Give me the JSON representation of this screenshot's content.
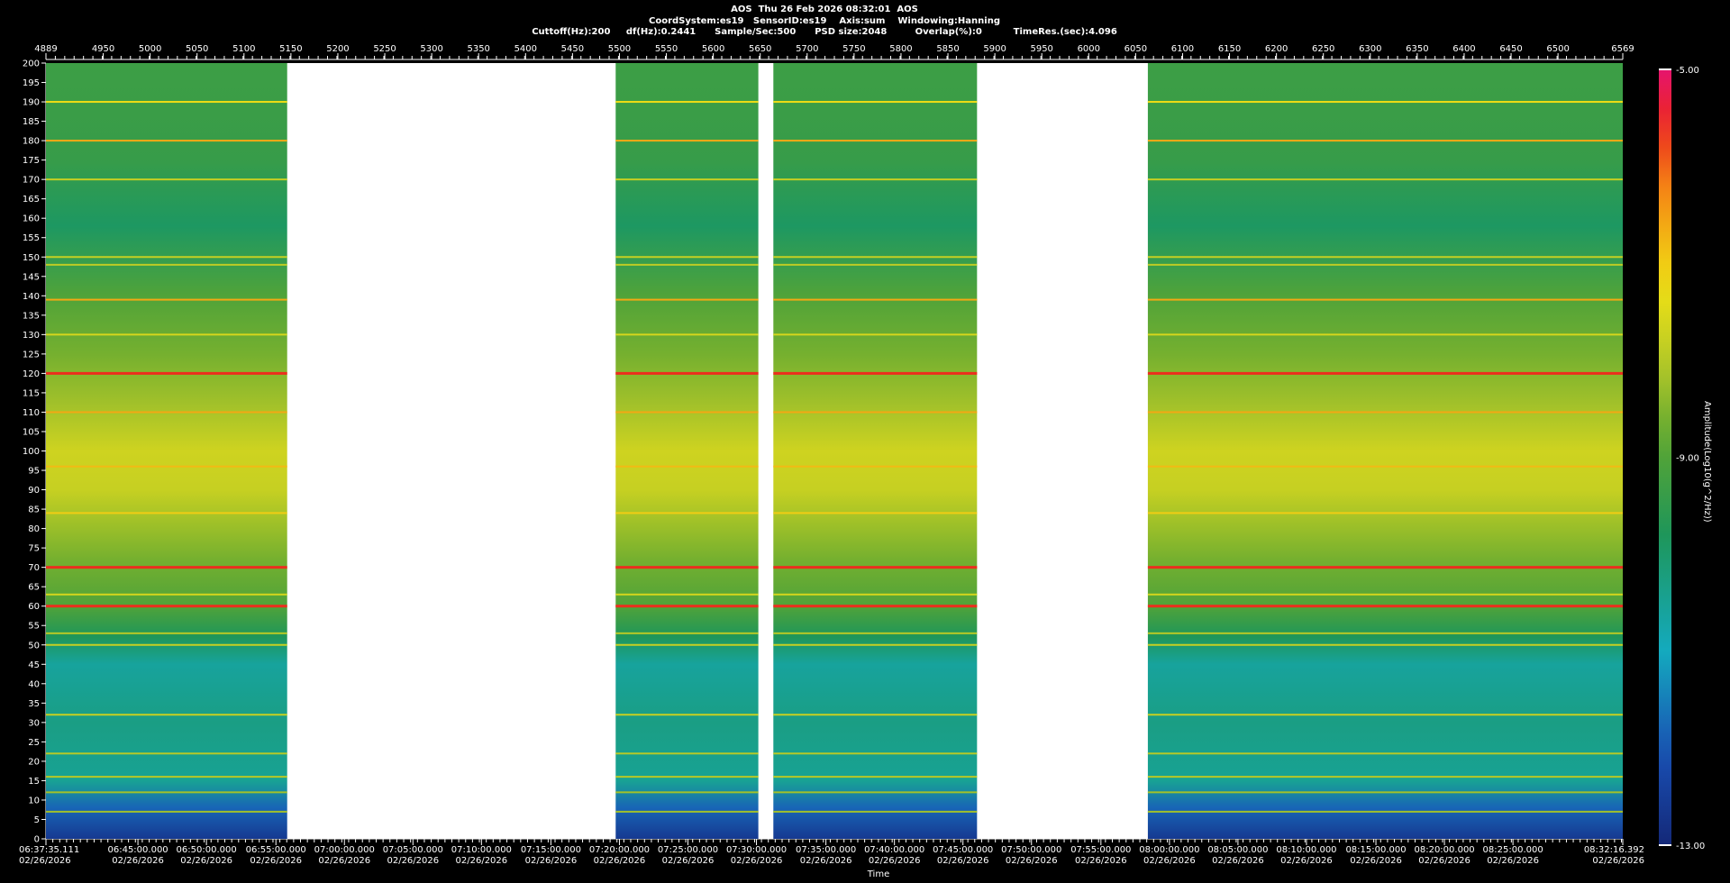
{
  "header": {
    "line1": "AOS  Thu 26 Feb 2026 08:32:01  AOS",
    "line2": "CoordSystem:es19   SensorID:es19    Axis:sum    Windowing:Hanning",
    "line3": "Cuttoff(Hz):200     df(Hz):0.2441      Sample/Sec:500      PSD size:2048         Overlap(%):0          TimeRes.(sec):4.096"
  },
  "chart_data": {
    "type": "heatmap",
    "title": "AOS  Thu 26 Feb 2026 08:32:01  AOS",
    "xlabel": "Time",
    "ylabel": "",
    "colorbar_label": "Amplitude(Log10(g^2/Hz))",
    "ylim": [
      0,
      200
    ],
    "y_ticks": [
      0,
      5,
      10,
      15,
      20,
      25,
      30,
      35,
      40,
      45,
      50,
      55,
      60,
      65,
      70,
      75,
      80,
      85,
      90,
      95,
      100,
      105,
      110,
      115,
      120,
      125,
      130,
      135,
      140,
      145,
      150,
      155,
      160,
      165,
      170,
      175,
      180,
      185,
      190,
      195,
      200
    ],
    "top_axis_range": [
      4889,
      6569
    ],
    "top_ticks": [
      {
        "v": 4889,
        "label": "4889"
      },
      {
        "v": 4950,
        "label": "4950"
      },
      {
        "v": 5000,
        "label": "5000"
      },
      {
        "v": 5050,
        "label": "5050"
      },
      {
        "v": 5100,
        "label": "5100"
      },
      {
        "v": 5150,
        "label": "5150"
      },
      {
        "v": 5200,
        "label": "5200"
      },
      {
        "v": 5250,
        "label": "5250"
      },
      {
        "v": 5300,
        "label": "5300"
      },
      {
        "v": 5350,
        "label": "5350"
      },
      {
        "v": 5400,
        "label": "5400"
      },
      {
        "v": 5450,
        "label": "5450"
      },
      {
        "v": 5500,
        "label": "5500"
      },
      {
        "v": 5550,
        "label": "5550"
      },
      {
        "v": 5600,
        "label": "5600"
      },
      {
        "v": 5650,
        "label": "5650"
      },
      {
        "v": 5700,
        "label": "5700"
      },
      {
        "v": 5750,
        "label": "5750"
      },
      {
        "v": 5800,
        "label": "5800"
      },
      {
        "v": 5850,
        "label": "5850"
      },
      {
        "v": 5900,
        "label": "5900"
      },
      {
        "v": 5950,
        "label": "5950"
      },
      {
        "v": 6000,
        "label": "6000"
      },
      {
        "v": 6050,
        "label": "6050"
      },
      {
        "v": 6100,
        "label": "6100"
      },
      {
        "v": 6150,
        "label": "6150"
      },
      {
        "v": 6200,
        "label": "6200"
      },
      {
        "v": 6250,
        "label": "6250"
      },
      {
        "v": 6300,
        "label": "6300"
      },
      {
        "v": 6350,
        "label": "6350"
      },
      {
        "v": 6400,
        "label": "6400"
      },
      {
        "v": 6450,
        "label": "6450"
      },
      {
        "v": 6500,
        "label": "6500"
      },
      {
        "v": 6569,
        "label": "6569"
      }
    ],
    "bottom_ticks": [
      {
        "v": 4889,
        "time": "06:37:35.111",
        "date": "02/26/2026"
      },
      {
        "v": 4987,
        "time": "06:45:00.000",
        "date": "02/26/2026"
      },
      {
        "v": 5060,
        "time": "06:50:00.000",
        "date": "02/26/2026"
      },
      {
        "v": 5134,
        "time": "06:55:00.000",
        "date": "02/26/2026"
      },
      {
        "v": 5207,
        "time": "07:00:00.000",
        "date": "02/26/2026"
      },
      {
        "v": 5280,
        "time": "07:05:00.000",
        "date": "02/26/2026"
      },
      {
        "v": 5353,
        "time": "07:10:00.000",
        "date": "02/26/2026"
      },
      {
        "v": 5427,
        "time": "07:15:00.000",
        "date": "02/26/2026"
      },
      {
        "v": 5500,
        "time": "07:20:00.000",
        "date": "02/26/2026"
      },
      {
        "v": 5573,
        "time": "07:25:00.000",
        "date": "02/26/2026"
      },
      {
        "v": 5646,
        "time": "07:30:00.000",
        "date": "02/26/2026"
      },
      {
        "v": 5720,
        "time": "07:35:00.000",
        "date": "02/26/2026"
      },
      {
        "v": 5793,
        "time": "07:40:00.000",
        "date": "02/26/2026"
      },
      {
        "v": 5866,
        "time": "07:45:00.000",
        "date": "02/26/2026"
      },
      {
        "v": 5939,
        "time": "07:50:00.000",
        "date": "02/26/2026"
      },
      {
        "v": 6013,
        "time": "07:55:00.000",
        "date": "02/26/2026"
      },
      {
        "v": 6086,
        "time": "08:00:00.000",
        "date": "02/26/2026"
      },
      {
        "v": 6159,
        "time": "08:05:00.000",
        "date": "02/26/2026"
      },
      {
        "v": 6232,
        "time": "08:10:00.000",
        "date": "02/26/2026"
      },
      {
        "v": 6306,
        "time": "08:15:00.000",
        "date": "02/26/2026"
      },
      {
        "v": 6379,
        "time": "08:20:00.000",
        "date": "02/26/2026"
      },
      {
        "v": 6452,
        "time": "08:25:00.000",
        "date": "02/26/2026"
      },
      {
        "v": 6569,
        "time": "08:32:16.392",
        "date": "02/26/2026"
      }
    ],
    "data_segments": [
      [
        4889,
        5146
      ],
      [
        5496,
        5648
      ],
      [
        5664,
        5881
      ],
      [
        6063,
        6569
      ]
    ],
    "colorbar": {
      "min": -13.0,
      "max": -5.0,
      "ticks": [
        {
          "v": -5.0,
          "label": "-5.00"
        },
        {
          "v": -9.0,
          "label": "-9.00"
        },
        {
          "v": -13.0,
          "label": "-13.00"
        }
      ]
    },
    "background_profile": [
      {
        "f": 0,
        "amp": -12.6
      },
      {
        "f": 8,
        "amp": -11.8
      },
      {
        "f": 15,
        "amp": -10.5
      },
      {
        "f": 30,
        "amp": -10.3
      },
      {
        "f": 45,
        "amp": -10.6
      },
      {
        "f": 52,
        "amp": -9.8
      },
      {
        "f": 60,
        "amp": -9.0
      },
      {
        "f": 72,
        "amp": -8.6
      },
      {
        "f": 90,
        "amp": -7.8
      },
      {
        "f": 100,
        "amp": -7.7
      },
      {
        "f": 112,
        "amp": -8.2
      },
      {
        "f": 125,
        "amp": -8.6
      },
      {
        "f": 140,
        "amp": -9.0
      },
      {
        "f": 158,
        "amp": -9.9
      },
      {
        "f": 175,
        "amp": -9.4
      },
      {
        "f": 200,
        "amp": -9.3
      }
    ],
    "tonal_lines": [
      {
        "f": 120,
        "amp": -5.6
      },
      {
        "f": 70,
        "amp": -5.6
      },
      {
        "f": 60,
        "amp": -5.6
      },
      {
        "f": 180,
        "amp": -6.6
      },
      {
        "f": 139,
        "amp": -6.6
      },
      {
        "f": 110,
        "amp": -6.6
      },
      {
        "f": 96,
        "amp": -6.8
      },
      {
        "f": 84,
        "amp": -7.0
      },
      {
        "f": 190,
        "amp": -7.2
      },
      {
        "f": 170,
        "amp": -7.8
      },
      {
        "f": 150,
        "amp": -7.8
      },
      {
        "f": 130,
        "amp": -7.6
      },
      {
        "f": 148,
        "amp": -7.9
      },
      {
        "f": 63,
        "amp": -7.6
      },
      {
        "f": 50,
        "amp": -7.8
      },
      {
        "f": 53,
        "amp": -8.0
      },
      {
        "f": 32,
        "amp": -7.8
      },
      {
        "f": 22,
        "amp": -8.0
      },
      {
        "f": 16,
        "amp": -8.0
      },
      {
        "f": 12,
        "amp": -8.2
      },
      {
        "f": 7,
        "amp": -8.2
      }
    ]
  }
}
